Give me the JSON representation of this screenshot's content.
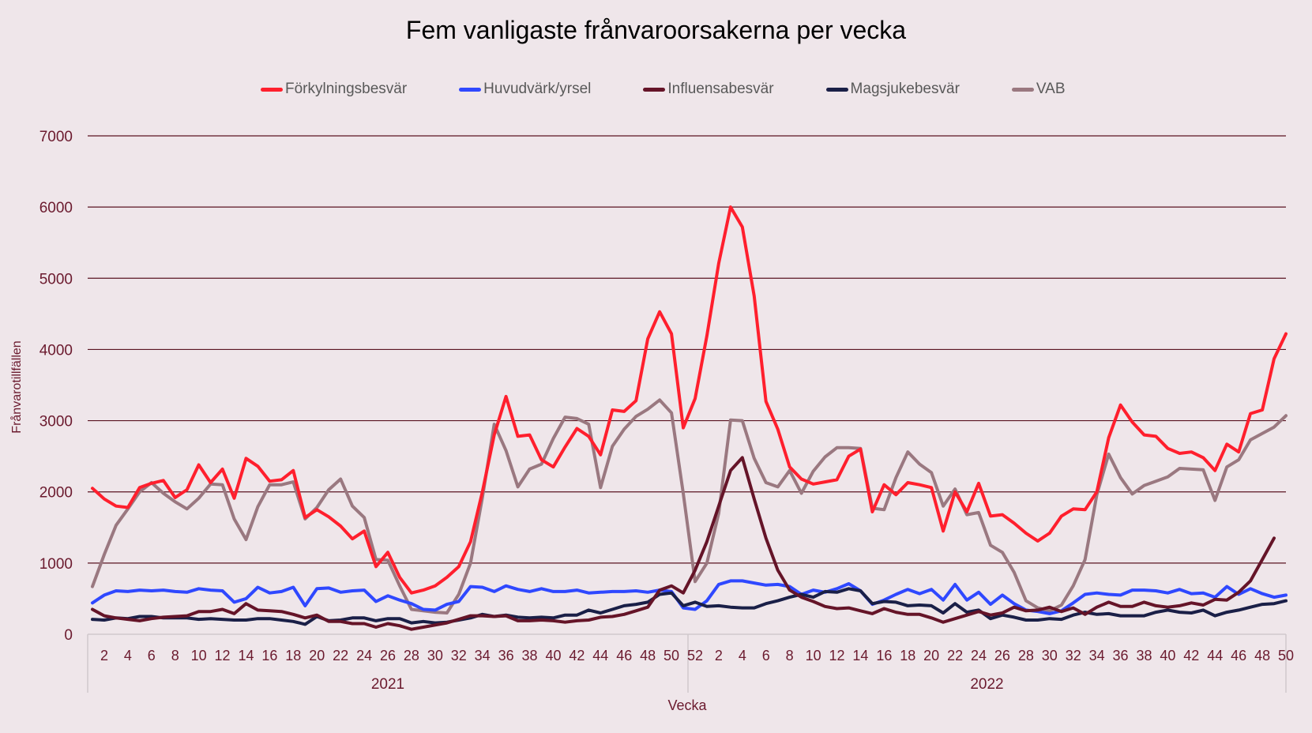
{
  "chart_data": {
    "type": "line",
    "title": "Fem vanligaste frånvaroorsakerna per vecka",
    "xlabel": "Vecka",
    "ylabel": "Frånvarotillfällen",
    "ylim": [
      0,
      7000
    ],
    "yticks": [
      0,
      1000,
      2000,
      3000,
      4000,
      5000,
      6000,
      7000
    ],
    "grid": true,
    "legend_position": "top",
    "x_groups": [
      {
        "label": "2021",
        "weeks_start": 1,
        "weeks_end": 52
      },
      {
        "label": "2022",
        "weeks_start": 1,
        "weeks_end": 50
      }
    ],
    "x_tick_labels_2021": [
      "2",
      "4",
      "6",
      "8",
      "10",
      "12",
      "14",
      "16",
      "18",
      "20",
      "22",
      "24",
      "26",
      "28",
      "30",
      "32",
      "34",
      "36",
      "38",
      "40",
      "42",
      "44",
      "46",
      "48",
      "50",
      "52"
    ],
    "x_tick_labels_2022": [
      "2",
      "4",
      "6",
      "8",
      "10",
      "12",
      "14",
      "16",
      "18",
      "20",
      "22",
      "24",
      "26",
      "28",
      "30",
      "32",
      "34",
      "36",
      "38",
      "40",
      "42",
      "44",
      "46",
      "48",
      "50"
    ],
    "series": [
      {
        "name": "Förkylningsbesvär",
        "color": "#ff1f2d",
        "values": [
          2050,
          1900,
          1800,
          1780,
          2060,
          2120,
          2160,
          1920,
          2030,
          2380,
          2130,
          2320,
          1910,
          2470,
          2360,
          2150,
          2170,
          2300,
          1640,
          1750,
          1650,
          1520,
          1340,
          1450,
          950,
          1150,
          800,
          580,
          620,
          680,
          800,
          950,
          1300,
          2000,
          2800,
          3340,
          2780,
          2800,
          2450,
          2350,
          2630,
          2890,
          2780,
          2520,
          3150,
          3130,
          3280,
          4150,
          4530,
          4220,
          2900,
          3310,
          4190,
          5210,
          6000,
          5720,
          4750,
          3270,
          2880,
          2350,
          2180,
          2110,
          2140,
          2170,
          2500,
          2600,
          1720,
          2100,
          1960,
          2130,
          2100,
          2060,
          1450,
          2000,
          1720,
          2120,
          1660,
          1680,
          1560,
          1420,
          1310,
          1420,
          1660,
          1760,
          1750,
          2000,
          2760,
          3220,
          2980,
          2800,
          2780,
          2610,
          2540,
          2560,
          2480,
          2300,
          2670,
          2560,
          3100,
          3150,
          3870,
          4220
        ]
      },
      {
        "name": "Huvudvärk/yrsel",
        "color": "#2f48ff",
        "values": [
          440,
          550,
          610,
          600,
          620,
          610,
          620,
          600,
          590,
          640,
          620,
          610,
          450,
          500,
          660,
          580,
          600,
          660,
          400,
          640,
          650,
          590,
          610,
          620,
          460,
          540,
          480,
          430,
          350,
          340,
          420,
          460,
          670,
          660,
          600,
          680,
          630,
          600,
          640,
          600,
          600,
          620,
          580,
          590,
          600,
          600,
          610,
          590,
          620,
          600,
          370,
          350,
          470,
          700,
          750,
          750,
          720,
          690,
          700,
          670,
          560,
          620,
          590,
          640,
          710,
          610,
          420,
          480,
          560,
          630,
          570,
          630,
          480,
          700,
          480,
          590,
          420,
          550,
          430,
          340,
          320,
          290,
          330,
          440,
          560,
          580,
          560,
          550,
          620,
          620,
          610,
          580,
          630,
          570,
          580,
          520,
          670,
          560,
          640,
          570,
          520,
          550
        ]
      },
      {
        "name": "Influensabesvär",
        "color": "#651428",
        "values": [
          350,
          260,
          230,
          210,
          190,
          220,
          240,
          250,
          260,
          320,
          320,
          350,
          290,
          430,
          340,
          330,
          320,
          280,
          230,
          270,
          180,
          180,
          150,
          150,
          100,
          150,
          120,
          70,
          100,
          130,
          160,
          210,
          260,
          260,
          250,
          260,
          190,
          190,
          200,
          190,
          170,
          190,
          200,
          240,
          250,
          280,
          330,
          380,
          620,
          680,
          580,
          900,
          1300,
          1800,
          2300,
          2480,
          1900,
          1350,
          900,
          620,
          520,
          460,
          390,
          360,
          370,
          330,
          290,
          360,
          310,
          280,
          280,
          230,
          170,
          220,
          270,
          320,
          270,
          300,
          380,
          330,
          340,
          380,
          320,
          370,
          280,
          380,
          450,
          390,
          390,
          450,
          400,
          380,
          400,
          440,
          410,
          490,
          480,
          590,
          750,
          1050,
          1350
        ]
      },
      {
        "name": "Magsjukebesvär",
        "color": "#1a1f47",
        "values": [
          210,
          200,
          230,
          220,
          250,
          250,
          230,
          230,
          230,
          210,
          220,
          210,
          200,
          200,
          220,
          220,
          200,
          180,
          140,
          250,
          190,
          200,
          230,
          230,
          190,
          220,
          220,
          160,
          180,
          160,
          170,
          200,
          230,
          280,
          250,
          270,
          240,
          230,
          240,
          230,
          270,
          270,
          340,
          300,
          350,
          400,
          420,
          450,
          560,
          580,
          400,
          450,
          390,
          400,
          380,
          370,
          370,
          430,
          470,
          520,
          560,
          520,
          600,
          590,
          640,
          610,
          430,
          460,
          450,
          400,
          410,
          400,
          300,
          430,
          310,
          340,
          220,
          270,
          240,
          200,
          200,
          220,
          210,
          270,
          310,
          280,
          290,
          260,
          260,
          260,
          310,
          340,
          310,
          300,
          340,
          260,
          310,
          340,
          380,
          420,
          430,
          470
        ]
      },
      {
        "name": "VAB",
        "color": "#9a7880",
        "values": [
          670,
          1120,
          1530,
          1760,
          2000,
          2130,
          1980,
          1860,
          1760,
          1910,
          2110,
          2100,
          1620,
          1330,
          1790,
          2100,
          2100,
          2140,
          1620,
          1780,
          2030,
          2180,
          1800,
          1640,
          1050,
          1040,
          680,
          350,
          330,
          310,
          300,
          560,
          1000,
          1920,
          2950,
          2580,
          2070,
          2320,
          2390,
          2750,
          3050,
          3030,
          2950,
          2060,
          2640,
          2880,
          3060,
          3160,
          3290,
          3110,
          1980,
          740,
          1000,
          1700,
          3010,
          3000,
          2470,
          2130,
          2070,
          2300,
          1980,
          2290,
          2490,
          2620,
          2620,
          2610,
          1770,
          1750,
          2200,
          2560,
          2390,
          2270,
          1800,
          2040,
          1680,
          1710,
          1250,
          1150,
          870,
          470,
          370,
          330,
          410,
          680,
          1050,
          1960,
          2530,
          2200,
          1970,
          2090,
          2150,
          2210,
          2330,
          2320,
          2310,
          1880,
          2350,
          2450,
          2730,
          2820,
          2910,
          3070
        ]
      }
    ]
  },
  "legend": {
    "items": [
      {
        "label": "Förkylningsbesvär",
        "color": "#ff1f2d"
      },
      {
        "label": "Huvudvärk/yrsel",
        "color": "#2f48ff"
      },
      {
        "label": "Influensabesvär",
        "color": "#651428"
      },
      {
        "label": "Magsjukebesvär",
        "color": "#1a1f47"
      },
      {
        "label": "VAB",
        "color": "#9a7880"
      }
    ]
  }
}
